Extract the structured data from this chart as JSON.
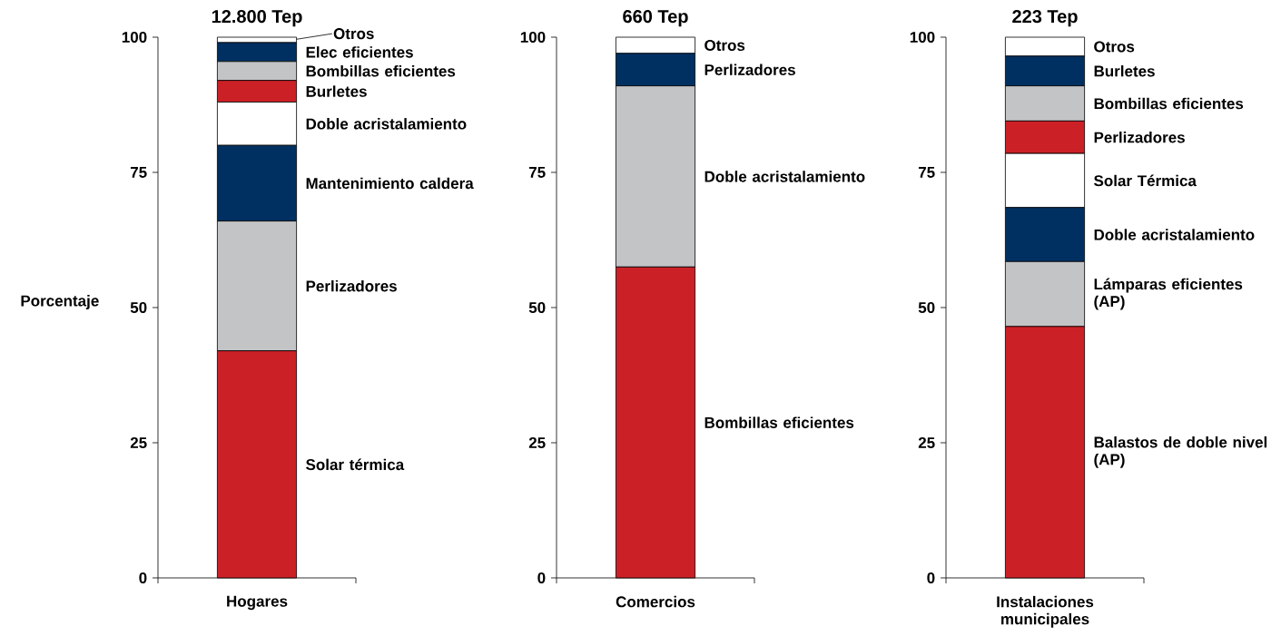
{
  "chart_data": [
    {
      "type": "bar",
      "stacked": true,
      "title": "12.800 Tep",
      "ylabel": "Porcentaje",
      "categories": [
        "Hogares"
      ],
      "ylim": [
        0,
        100
      ],
      "yticks": [
        0,
        25,
        50,
        75,
        100
      ],
      "series": [
        {
          "name": "Solar térmica",
          "color": "#cc2027",
          "values": [
            42
          ]
        },
        {
          "name": "Perlizadores",
          "color": "#c3c4c6",
          "values": [
            24
          ]
        },
        {
          "name": "Mantenimiento caldera",
          "color": "#003062",
          "values": [
            14
          ]
        },
        {
          "name": "Doble acristalamiento",
          "color": "#ffffff",
          "values": [
            8
          ]
        },
        {
          "name": "Burletes",
          "color": "#cc2027",
          "values": [
            4
          ]
        },
        {
          "name": "Bombillas eficientes",
          "color": "#c3c4c6",
          "values": [
            3.5
          ]
        },
        {
          "name": "Elec eficientes",
          "color": "#003062",
          "values": [
            3.5
          ]
        },
        {
          "name": "Otros",
          "color": "#ffffff",
          "values": [
            1
          ]
        }
      ]
    },
    {
      "type": "bar",
      "stacked": true,
      "title": "660 Tep",
      "categories": [
        "Comercios"
      ],
      "ylim": [
        0,
        100
      ],
      "yticks": [
        0,
        25,
        50,
        75,
        100
      ],
      "series": [
        {
          "name": "Bombillas eficientes",
          "color": "#cc2027",
          "values": [
            57.5
          ]
        },
        {
          "name": "Doble acristalamiento",
          "color": "#c3c4c6",
          "values": [
            33.5
          ]
        },
        {
          "name": "Perlizadores",
          "color": "#003062",
          "values": [
            6
          ]
        },
        {
          "name": "Otros",
          "color": "#ffffff",
          "values": [
            3
          ]
        }
      ]
    },
    {
      "type": "bar",
      "stacked": true,
      "title": "223 Tep",
      "categories": [
        "Instalaciones municipales"
      ],
      "ylim": [
        0,
        100
      ],
      "yticks": [
        0,
        25,
        50,
        75,
        100
      ],
      "series": [
        {
          "name": "Balastos de doble nivel (AP)",
          "color": "#cc2027",
          "values": [
            46.5
          ]
        },
        {
          "name": "Lámparas eficientes (AP)",
          "color": "#c3c4c6",
          "values": [
            12
          ]
        },
        {
          "name": "Doble acristalamiento",
          "color": "#003062",
          "values": [
            10
          ]
        },
        {
          "name": "Solar Térmica",
          "color": "#ffffff",
          "values": [
            10
          ]
        },
        {
          "name": "Perlizadores",
          "color": "#cc2027",
          "values": [
            6
          ]
        },
        {
          "name": "Bombillas eficientes",
          "color": "#c3c4c6",
          "values": [
            6.5
          ]
        },
        {
          "name": "Burletes",
          "color": "#003062",
          "values": [
            5.5
          ]
        },
        {
          "name": "Otros",
          "color": "#ffffff",
          "values": [
            3.5
          ]
        }
      ]
    }
  ]
}
